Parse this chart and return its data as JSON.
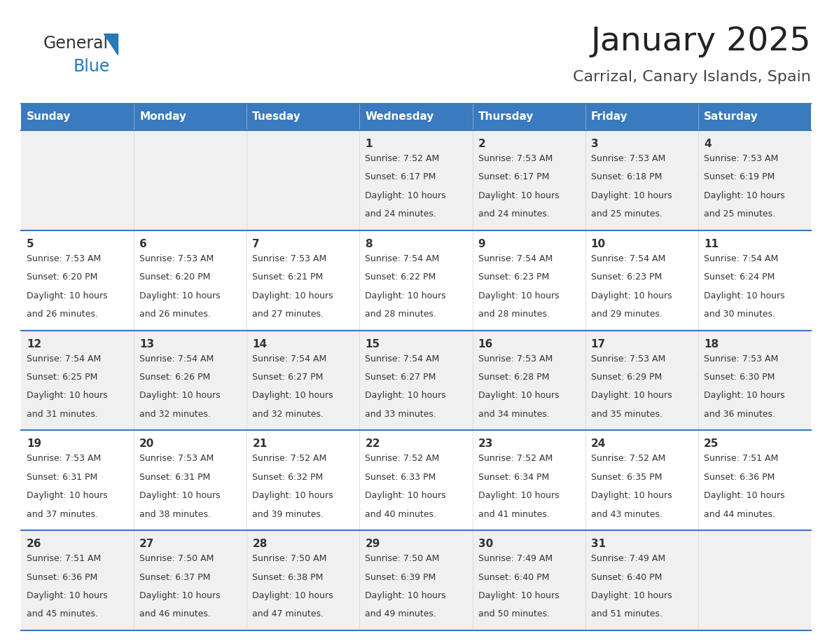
{
  "title": "January 2025",
  "subtitle": "Carrizal, Canary Islands, Spain",
  "days_of_week": [
    "Sunday",
    "Monday",
    "Tuesday",
    "Wednesday",
    "Thursday",
    "Friday",
    "Saturday"
  ],
  "header_bg": "#3a7abf",
  "header_text": "#ffffff",
  "row_bg_odd": "#f0f0f0",
  "row_bg_even": "#ffffff",
  "cell_text_color": "#333333",
  "day_num_color": "#333333",
  "border_color": "#3a7abf",
  "calendar_data": [
    [
      null,
      null,
      null,
      {
        "day": 1,
        "sunrise": "7:52 AM",
        "sunset": "6:17 PM",
        "daylight_hours": 10,
        "daylight_minutes": 24
      },
      {
        "day": 2,
        "sunrise": "7:53 AM",
        "sunset": "6:17 PM",
        "daylight_hours": 10,
        "daylight_minutes": 24
      },
      {
        "day": 3,
        "sunrise": "7:53 AM",
        "sunset": "6:18 PM",
        "daylight_hours": 10,
        "daylight_minutes": 25
      },
      {
        "day": 4,
        "sunrise": "7:53 AM",
        "sunset": "6:19 PM",
        "daylight_hours": 10,
        "daylight_minutes": 25
      }
    ],
    [
      {
        "day": 5,
        "sunrise": "7:53 AM",
        "sunset": "6:20 PM",
        "daylight_hours": 10,
        "daylight_minutes": 26
      },
      {
        "day": 6,
        "sunrise": "7:53 AM",
        "sunset": "6:20 PM",
        "daylight_hours": 10,
        "daylight_minutes": 26
      },
      {
        "day": 7,
        "sunrise": "7:53 AM",
        "sunset": "6:21 PM",
        "daylight_hours": 10,
        "daylight_minutes": 27
      },
      {
        "day": 8,
        "sunrise": "7:54 AM",
        "sunset": "6:22 PM",
        "daylight_hours": 10,
        "daylight_minutes": 28
      },
      {
        "day": 9,
        "sunrise": "7:54 AM",
        "sunset": "6:23 PM",
        "daylight_hours": 10,
        "daylight_minutes": 28
      },
      {
        "day": 10,
        "sunrise": "7:54 AM",
        "sunset": "6:23 PM",
        "daylight_hours": 10,
        "daylight_minutes": 29
      },
      {
        "day": 11,
        "sunrise": "7:54 AM",
        "sunset": "6:24 PM",
        "daylight_hours": 10,
        "daylight_minutes": 30
      }
    ],
    [
      {
        "day": 12,
        "sunrise": "7:54 AM",
        "sunset": "6:25 PM",
        "daylight_hours": 10,
        "daylight_minutes": 31
      },
      {
        "day": 13,
        "sunrise": "7:54 AM",
        "sunset": "6:26 PM",
        "daylight_hours": 10,
        "daylight_minutes": 32
      },
      {
        "day": 14,
        "sunrise": "7:54 AM",
        "sunset": "6:27 PM",
        "daylight_hours": 10,
        "daylight_minutes": 32
      },
      {
        "day": 15,
        "sunrise": "7:54 AM",
        "sunset": "6:27 PM",
        "daylight_hours": 10,
        "daylight_minutes": 33
      },
      {
        "day": 16,
        "sunrise": "7:53 AM",
        "sunset": "6:28 PM",
        "daylight_hours": 10,
        "daylight_minutes": 34
      },
      {
        "day": 17,
        "sunrise": "7:53 AM",
        "sunset": "6:29 PM",
        "daylight_hours": 10,
        "daylight_minutes": 35
      },
      {
        "day": 18,
        "sunrise": "7:53 AM",
        "sunset": "6:30 PM",
        "daylight_hours": 10,
        "daylight_minutes": 36
      }
    ],
    [
      {
        "day": 19,
        "sunrise": "7:53 AM",
        "sunset": "6:31 PM",
        "daylight_hours": 10,
        "daylight_minutes": 37
      },
      {
        "day": 20,
        "sunrise": "7:53 AM",
        "sunset": "6:31 PM",
        "daylight_hours": 10,
        "daylight_minutes": 38
      },
      {
        "day": 21,
        "sunrise": "7:52 AM",
        "sunset": "6:32 PM",
        "daylight_hours": 10,
        "daylight_minutes": 39
      },
      {
        "day": 22,
        "sunrise": "7:52 AM",
        "sunset": "6:33 PM",
        "daylight_hours": 10,
        "daylight_minutes": 40
      },
      {
        "day": 23,
        "sunrise": "7:52 AM",
        "sunset": "6:34 PM",
        "daylight_hours": 10,
        "daylight_minutes": 41
      },
      {
        "day": 24,
        "sunrise": "7:52 AM",
        "sunset": "6:35 PM",
        "daylight_hours": 10,
        "daylight_minutes": 43
      },
      {
        "day": 25,
        "sunrise": "7:51 AM",
        "sunset": "6:36 PM",
        "daylight_hours": 10,
        "daylight_minutes": 44
      }
    ],
    [
      {
        "day": 26,
        "sunrise": "7:51 AM",
        "sunset": "6:36 PM",
        "daylight_hours": 10,
        "daylight_minutes": 45
      },
      {
        "day": 27,
        "sunrise": "7:50 AM",
        "sunset": "6:37 PM",
        "daylight_hours": 10,
        "daylight_minutes": 46
      },
      {
        "day": 28,
        "sunrise": "7:50 AM",
        "sunset": "6:38 PM",
        "daylight_hours": 10,
        "daylight_minutes": 47
      },
      {
        "day": 29,
        "sunrise": "7:50 AM",
        "sunset": "6:39 PM",
        "daylight_hours": 10,
        "daylight_minutes": 49
      },
      {
        "day": 30,
        "sunrise": "7:49 AM",
        "sunset": "6:40 PM",
        "daylight_hours": 10,
        "daylight_minutes": 50
      },
      {
        "day": 31,
        "sunrise": "7:49 AM",
        "sunset": "6:40 PM",
        "daylight_hours": 10,
        "daylight_minutes": 51
      },
      null
    ]
  ],
  "logo_color_general": "#333333",
  "logo_color_blue": "#2479b8"
}
